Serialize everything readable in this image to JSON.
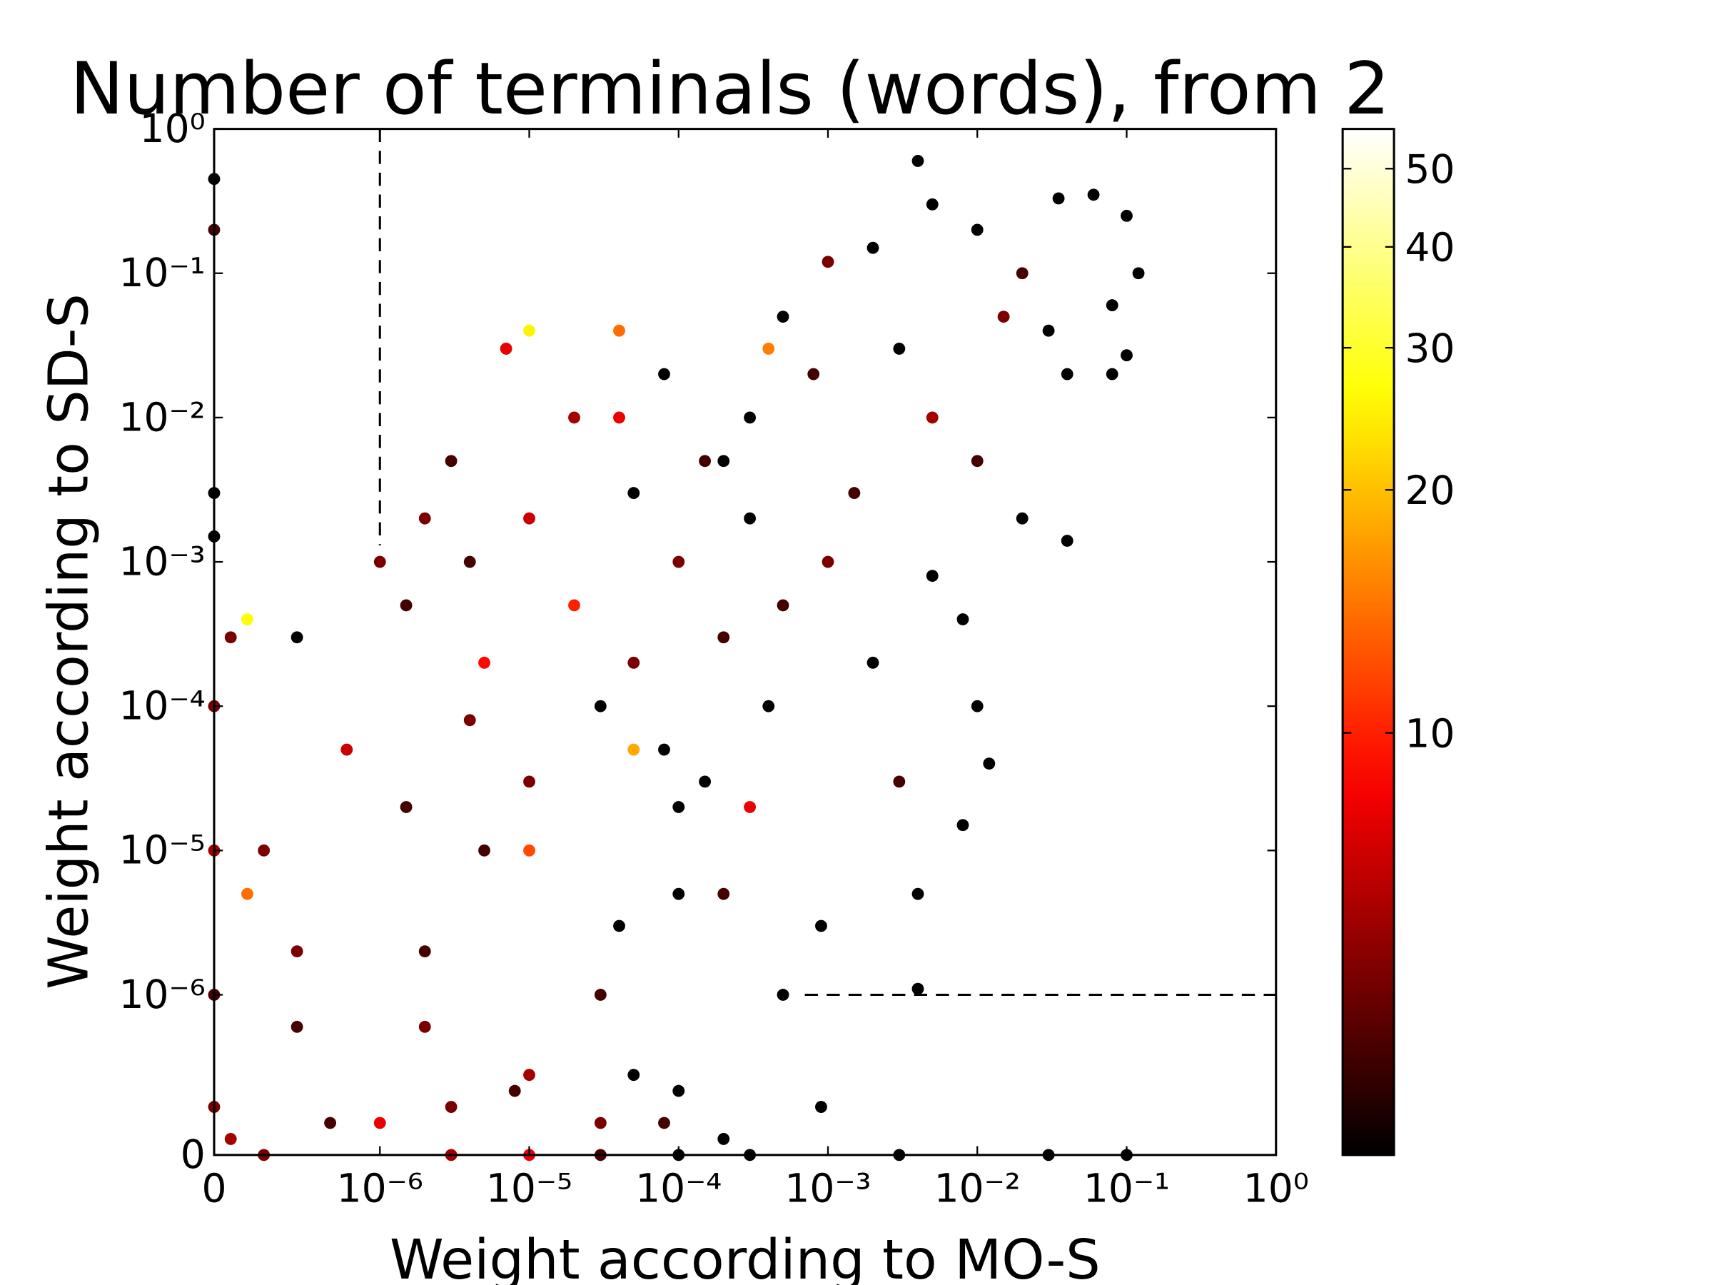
{
  "chart_data": {
    "type": "scatter",
    "title": "Number of terminals (words), from 2",
    "xlabel": "Weight according to MO-S",
    "ylabel": "Weight according to SD-S",
    "scale": "symlog",
    "linthresh": 1e-06,
    "xlim": [
      0,
      1
    ],
    "ylim": [
      0,
      1
    ],
    "xticks": [
      0,
      {
        "value": 1e-06,
        "label": "10⁻⁶"
      },
      {
        "value": 1e-05,
        "label": "10⁻⁵"
      },
      {
        "value": 0.0001,
        "label": "10⁻⁴"
      },
      {
        "value": 0.001,
        "label": "10⁻³"
      },
      {
        "value": 0.01,
        "label": "10⁻²"
      },
      {
        "value": 0.1,
        "label": "10⁻¹"
      },
      {
        "value": 1,
        "label": "10⁰"
      }
    ],
    "yticks": [
      0,
      {
        "value": 1e-06,
        "label": "10⁻⁶"
      },
      {
        "value": 1e-05,
        "label": "10⁻⁵"
      },
      {
        "value": 0.0001,
        "label": "10⁻⁴"
      },
      {
        "value": 0.001,
        "label": "10⁻³"
      },
      {
        "value": 0.01,
        "label": "10⁻²"
      },
      {
        "value": 0.1,
        "label": "10⁻¹"
      },
      {
        "value": 1,
        "label": "10⁰"
      }
    ],
    "colormap": "hot",
    "color_scale": "log",
    "clim": [
      3,
      56
    ],
    "cticks": [
      10,
      20,
      30,
      40,
      50
    ],
    "vline": {
      "x": 1e-06,
      "y_from": 0.0013
    },
    "hline": {
      "y": 1e-06,
      "x_from": 0.0007
    },
    "x": [
      0.004,
      0.06,
      0.035,
      0.1,
      0.12,
      0.08,
      0.1,
      0.08,
      0.04,
      0.02,
      0.01,
      0.005,
      0.002,
      0.015,
      0.03,
      0.04,
      0.02,
      0.01,
      0.005,
      0.003,
      0.001,
      0.0008,
      0.0005,
      0.0003,
      0.0004,
      0.0002,
      0.0015,
      0.005,
      0.008,
      0.01,
      0.012,
      0.008,
      0.004,
      0.003,
      0.002,
      0.001,
      0.0009,
      0.0005,
      0.004,
      0.0009,
      0.0002,
      0.0001,
      5e-05,
      2e-05,
      1e-05,
      7e-06,
      3e-06,
      2e-06,
      1.5e-06,
      5e-07,
      2e-07,
      1e-07,
      3e-05,
      1e-05,
      5e-06,
      8e-05,
      0.0003,
      0.0001,
      3e-05,
      1e-05,
      3e-06,
      5e-07,
      3e-07,
      8e-07,
      2e-07,
      2e-06,
      5e-06,
      2e-05,
      5e-05,
      0.0001,
      0.0002,
      4e-05,
      1e-05,
      4e-06,
      1.5e-06,
      5e-07,
      1e-07,
      7e-07,
      2e-06,
      8e-06,
      3e-05,
      5e-05,
      8e-05,
      0.0001,
      0.0002,
      0.00015,
      0.0004,
      0.0005,
      0.0003,
      0.00015,
      8e-05,
      4e-05,
      1e-05,
      4e-06,
      1e-06,
      0,
      0,
      0,
      0,
      0,
      0,
      0,
      0,
      3e-07,
      3e-06,
      3e-05,
      0.0003,
      0.003,
      0.03,
      0.1,
      1e-05,
      0.0001,
      4e-05,
      1e-06,
      5e-05
    ],
    "y": [
      0.6,
      0.35,
      0.33,
      0.25,
      0.1,
      0.06,
      0.027,
      0.02,
      0.02,
      0.1,
      0.2,
      0.3,
      0.15,
      0.05,
      0.04,
      0.0014,
      0.002,
      0.005,
      0.01,
      0.03,
      0.12,
      0.02,
      0.05,
      0.01,
      0.03,
      0.005,
      0.003,
      0.0008,
      0.0004,
      0.0001,
      4e-05,
      1.5e-05,
      5e-06,
      3e-05,
      0.0002,
      0.001,
      3e-06,
      1e-06,
      1.1e-06,
      3e-07,
      0.0003,
      0.001,
      0.003,
      0.01,
      0.04,
      0.03,
      0.005,
      0.002,
      0.0005,
      0.0003,
      0.0004,
      0.0003,
      0.0001,
      3e-05,
      1e-05,
      5e-05,
      2e-05,
      5e-06,
      1e-06,
      5e-07,
      3e-07,
      8e-07,
      1e-05,
      5e-05,
      5e-06,
      2e-06,
      0.0002,
      0.0005,
      0.0002,
      2e-05,
      5e-06,
      3e-06,
      1e-05,
      8e-05,
      2e-05,
      2e-06,
      1e-07,
      2e-07,
      8e-07,
      4e-07,
      2e-07,
      5e-07,
      2e-07,
      4e-07,
      1e-07,
      3e-05,
      0.0001,
      0.0005,
      0.002,
      0.005,
      0.02,
      0.01,
      0.002,
      0.001,
      0.001,
      0.45,
      0.2,
      0.003,
      0.0015,
      0.0001,
      1e-05,
      1e-06,
      3e-07,
      0,
      0,
      0,
      0,
      0,
      0,
      0,
      0,
      0,
      0.04,
      2e-07,
      5e-05
    ],
    "c": [
      3,
      3,
      3,
      3,
      3,
      3,
      3,
      3,
      3,
      4,
      3,
      3,
      3,
      5,
      3,
      3,
      3,
      4,
      6,
      3,
      5,
      4,
      3,
      3,
      15,
      3,
      4,
      3,
      3,
      3,
      3,
      3,
      3,
      4,
      3,
      5,
      3,
      3,
      3,
      3,
      4,
      5,
      3,
      6,
      25,
      8,
      4,
      5,
      4,
      3,
      26,
      5,
      3,
      5,
      4,
      3,
      8,
      3,
      4,
      6,
      5,
      4,
      5,
      7,
      14,
      4,
      9,
      10,
      5,
      3,
      4,
      3,
      12,
      5,
      4,
      5,
      6,
      4,
      5,
      4,
      5,
      3,
      4,
      3,
      3,
      3,
      3,
      4,
      3,
      4,
      3,
      8,
      7,
      4,
      5,
      3,
      4,
      3,
      3,
      5,
      6,
      4,
      5,
      5,
      6,
      4,
      3,
      3,
      3,
      3,
      8,
      3,
      14,
      8,
      18
    ]
  }
}
